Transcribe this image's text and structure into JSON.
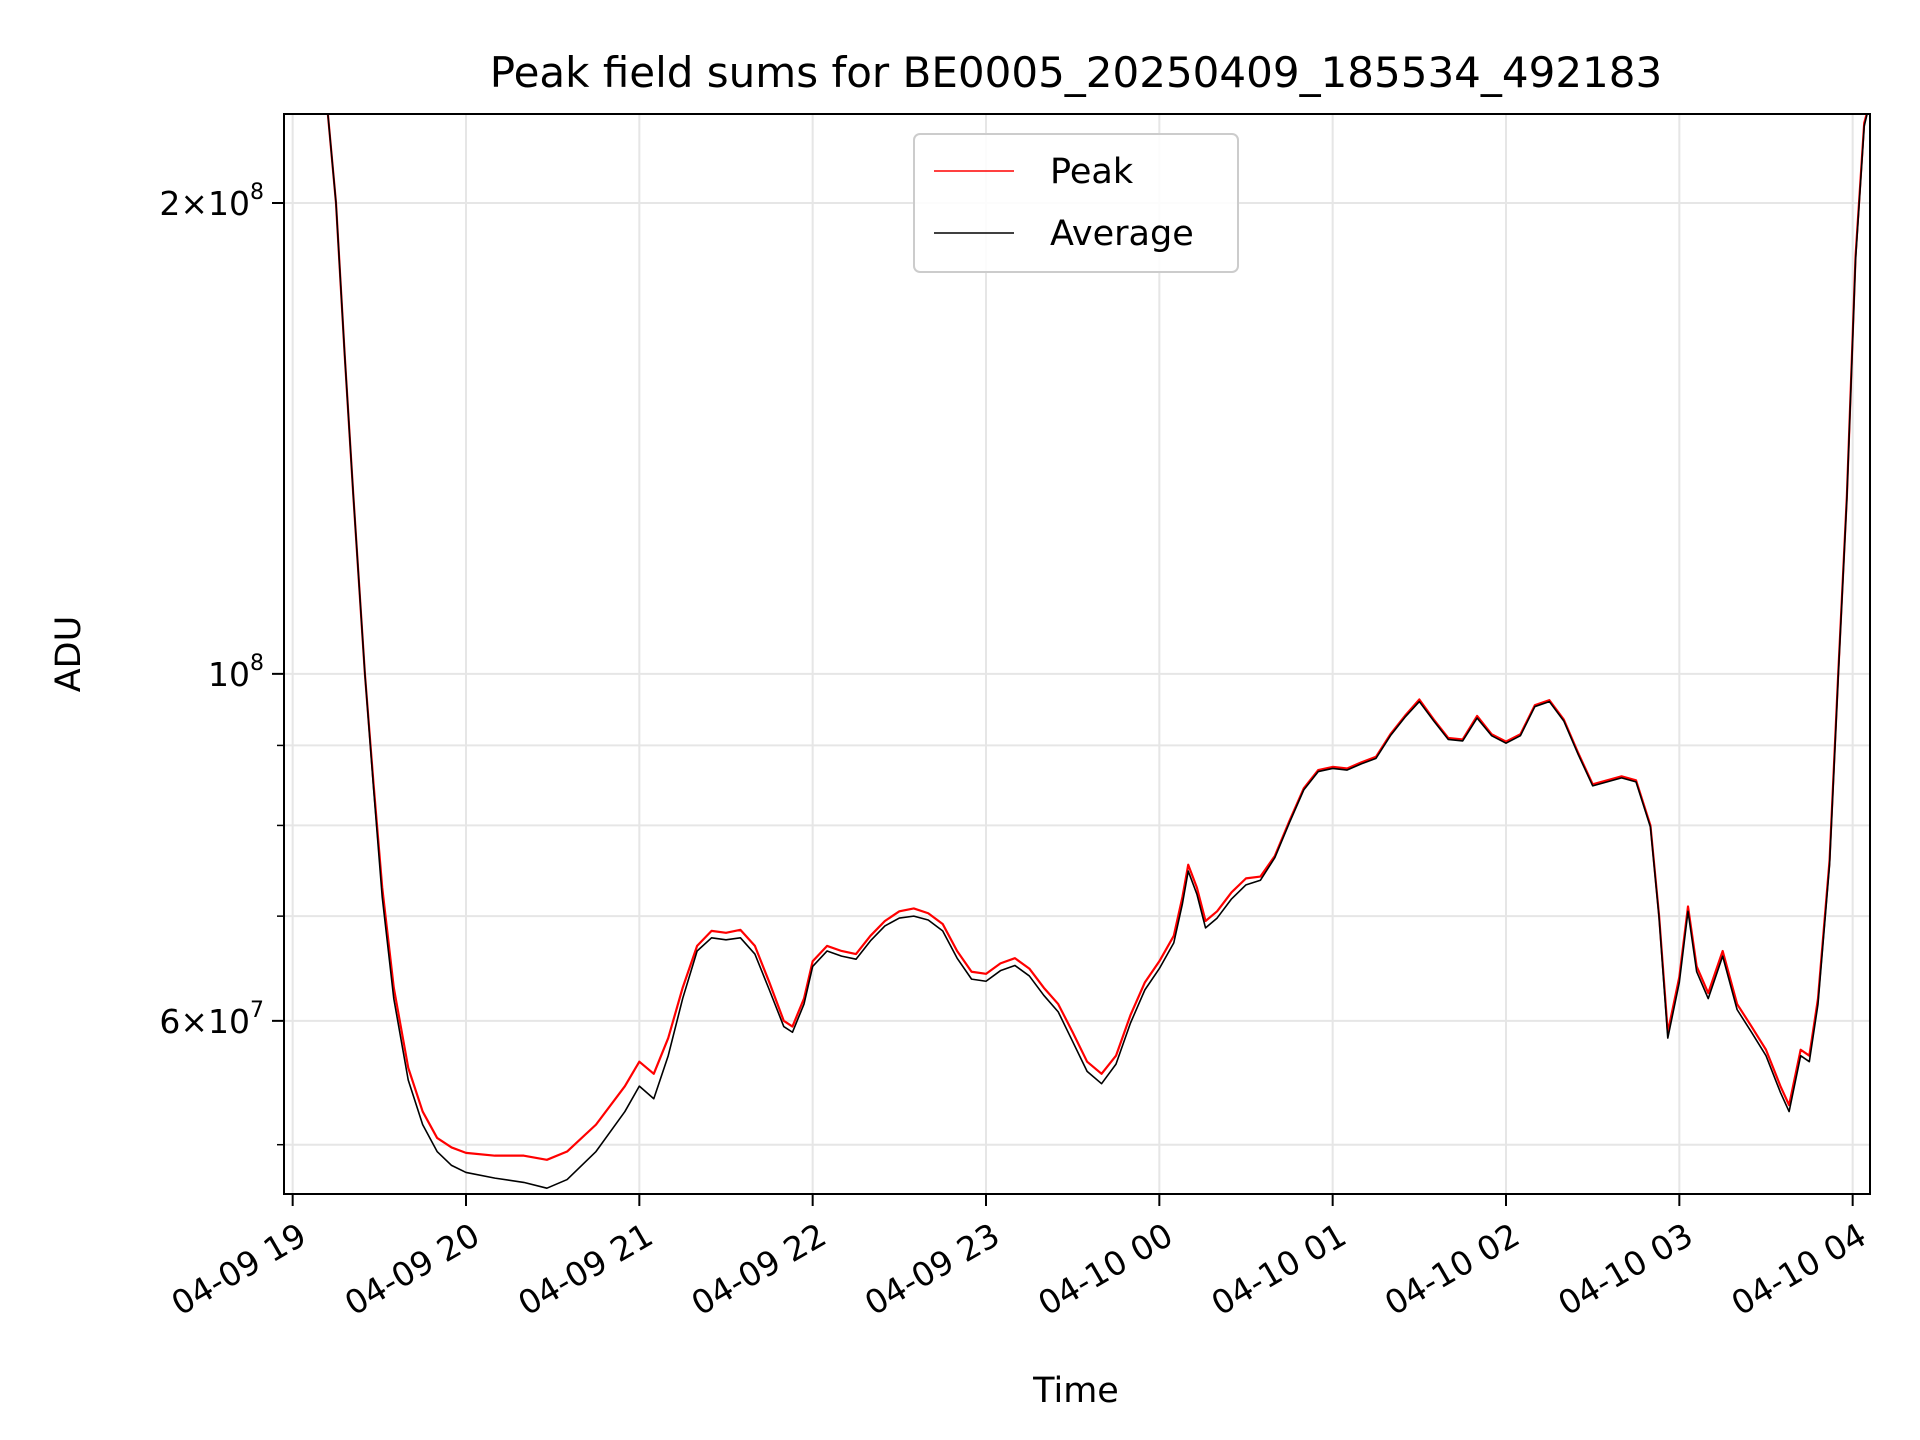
{
  "chart_data": {
    "type": "line",
    "title": "Peak field sums for BE0005_20250409_185534_492183",
    "xlabel": "Time",
    "ylabel": "ADU",
    "yscale": "log",
    "xlim": [
      "2025-04-09 18:57",
      "2025-04-10 04:06"
    ],
    "ylim": [
      46500000,
      228000000
    ],
    "x_ticks": [
      {
        "t": "2025-04-09 19:00",
        "label": "04-09 19"
      },
      {
        "t": "2025-04-09 20:00",
        "label": "04-09 20"
      },
      {
        "t": "2025-04-09 21:00",
        "label": "04-09 21"
      },
      {
        "t": "2025-04-09 22:00",
        "label": "04-09 22"
      },
      {
        "t": "2025-04-09 23:00",
        "label": "04-09 23"
      },
      {
        "t": "2025-04-10 00:00",
        "label": "04-10 00"
      },
      {
        "t": "2025-04-10 01:00",
        "label": "04-10 01"
      },
      {
        "t": "2025-04-10 02:00",
        "label": "04-10 02"
      },
      {
        "t": "2025-04-10 03:00",
        "label": "04-10 03"
      },
      {
        "t": "2025-04-10 04:00",
        "label": "04-10 04"
      }
    ],
    "y_major_ticks": [
      {
        "value": 60000000,
        "mantissa": "6",
        "exponent": "7"
      },
      {
        "value": 100000000,
        "mantissa": "",
        "exponent": "8"
      },
      {
        "value": 200000000,
        "mantissa": "2",
        "exponent": "8"
      }
    ],
    "y_minor_ticks": [
      50000000,
      70000000,
      80000000,
      90000000
    ],
    "grid": true,
    "legend_position": "top-center",
    "series": [
      {
        "name": "Peak",
        "color": "#ff0000",
        "points": [
          [
            "2025-04-09 19:12",
            230000000
          ],
          [
            "2025-04-09 19:15",
            200000000
          ],
          [
            "2025-04-09 19:18",
            160000000
          ],
          [
            "2025-04-09 19:21",
            130000000
          ],
          [
            "2025-04-09 19:25",
            100000000
          ],
          [
            "2025-04-09 19:28",
            85000000
          ],
          [
            "2025-04-09 19:31",
            73000000
          ],
          [
            "2025-04-09 19:35",
            63000000
          ],
          [
            "2025-04-09 19:40",
            56000000
          ],
          [
            "2025-04-09 19:45",
            52500000
          ],
          [
            "2025-04-09 19:50",
            50500000
          ],
          [
            "2025-04-09 19:55",
            49800000
          ],
          [
            "2025-04-09 20:00",
            49400000
          ],
          [
            "2025-04-09 20:10",
            49200000
          ],
          [
            "2025-04-09 20:20",
            49200000
          ],
          [
            "2025-04-09 20:28",
            48900000
          ],
          [
            "2025-04-09 20:35",
            49500000
          ],
          [
            "2025-04-09 20:45",
            51500000
          ],
          [
            "2025-04-09 20:55",
            54500000
          ],
          [
            "2025-04-09 21:00",
            56500000
          ],
          [
            "2025-04-09 21:05",
            55500000
          ],
          [
            "2025-04-09 21:10",
            58500000
          ],
          [
            "2025-04-09 21:15",
            63000000
          ],
          [
            "2025-04-09 21:20",
            67000000
          ],
          [
            "2025-04-09 21:25",
            68500000
          ],
          [
            "2025-04-09 21:30",
            68300000
          ],
          [
            "2025-04-09 21:35",
            68600000
          ],
          [
            "2025-04-09 21:40",
            67000000
          ],
          [
            "2025-04-09 21:45",
            63500000
          ],
          [
            "2025-04-09 21:50",
            60000000
          ],
          [
            "2025-04-09 21:53",
            59500000
          ],
          [
            "2025-04-09 21:57",
            62000000
          ],
          [
            "2025-04-09 22:00",
            65500000
          ],
          [
            "2025-04-09 22:05",
            67000000
          ],
          [
            "2025-04-09 22:10",
            66500000
          ],
          [
            "2025-04-09 22:15",
            66200000
          ],
          [
            "2025-04-09 22:20",
            68000000
          ],
          [
            "2025-04-09 22:25",
            69500000
          ],
          [
            "2025-04-09 22:30",
            70500000
          ],
          [
            "2025-04-09 22:35",
            70800000
          ],
          [
            "2025-04-09 22:40",
            70300000
          ],
          [
            "2025-04-09 22:45",
            69200000
          ],
          [
            "2025-04-09 22:50",
            66500000
          ],
          [
            "2025-04-09 22:55",
            64500000
          ],
          [
            "2025-04-09 23:00",
            64300000
          ],
          [
            "2025-04-09 23:05",
            65300000
          ],
          [
            "2025-04-09 23:10",
            65800000
          ],
          [
            "2025-04-09 23:15",
            64800000
          ],
          [
            "2025-04-09 23:20",
            63000000
          ],
          [
            "2025-04-09 23:25",
            61500000
          ],
          [
            "2025-04-09 23:30",
            59000000
          ],
          [
            "2025-04-09 23:35",
            56500000
          ],
          [
            "2025-04-09 23:40",
            55500000
          ],
          [
            "2025-04-09 23:45",
            57000000
          ],
          [
            "2025-04-09 23:50",
            60500000
          ],
          [
            "2025-04-09 23:55",
            63500000
          ],
          [
            "2025-04-10 00:00",
            65500000
          ],
          [
            "2025-04-10 00:05",
            68000000
          ],
          [
            "2025-04-10 00:08",
            72000000
          ],
          [
            "2025-04-10 00:10",
            75500000
          ],
          [
            "2025-04-10 00:13",
            73000000
          ],
          [
            "2025-04-10 00:16",
            69500000
          ],
          [
            "2025-04-10 00:20",
            70500000
          ],
          [
            "2025-04-10 00:25",
            72500000
          ],
          [
            "2025-04-10 00:30",
            74000000
          ],
          [
            "2025-04-10 00:35",
            74200000
          ],
          [
            "2025-04-10 00:40",
            76500000
          ],
          [
            "2025-04-10 00:45",
            80500000
          ],
          [
            "2025-04-10 00:50",
            84500000
          ],
          [
            "2025-04-10 00:55",
            86800000
          ],
          [
            "2025-04-10 01:00",
            87200000
          ],
          [
            "2025-04-10 01:05",
            87000000
          ],
          [
            "2025-04-10 01:10",
            87800000
          ],
          [
            "2025-04-10 01:15",
            88500000
          ],
          [
            "2025-04-10 01:20",
            91500000
          ],
          [
            "2025-04-10 01:25",
            94000000
          ],
          [
            "2025-04-10 01:30",
            96300000
          ],
          [
            "2025-04-10 01:35",
            93500000
          ],
          [
            "2025-04-10 01:40",
            91000000
          ],
          [
            "2025-04-10 01:45",
            90800000
          ],
          [
            "2025-04-10 01:50",
            94000000
          ],
          [
            "2025-04-10 01:55",
            91500000
          ],
          [
            "2025-04-10 02:00",
            90500000
          ],
          [
            "2025-04-10 02:05",
            91500000
          ],
          [
            "2025-04-10 02:10",
            95500000
          ],
          [
            "2025-04-10 02:15",
            96200000
          ],
          [
            "2025-04-10 02:20",
            93500000
          ],
          [
            "2025-04-10 02:25",
            89000000
          ],
          [
            "2025-04-10 02:30",
            85000000
          ],
          [
            "2025-04-10 02:35",
            85500000
          ],
          [
            "2025-04-10 02:40",
            86000000
          ],
          [
            "2025-04-10 02:45",
            85500000
          ],
          [
            "2025-04-10 02:50",
            80000000
          ],
          [
            "2025-04-10 02:53",
            70000000
          ],
          [
            "2025-04-10 02:56",
            59000000
          ],
          [
            "2025-04-10 03:00",
            64000000
          ],
          [
            "2025-04-10 03:03",
            71000000
          ],
          [
            "2025-04-10 03:06",
            65000000
          ],
          [
            "2025-04-10 03:10",
            62500000
          ],
          [
            "2025-04-10 03:15",
            66500000
          ],
          [
            "2025-04-10 03:20",
            61500000
          ],
          [
            "2025-04-10 03:25",
            59500000
          ],
          [
            "2025-04-10 03:30",
            57500000
          ],
          [
            "2025-04-10 03:35",
            54500000
          ],
          [
            "2025-04-10 03:38",
            53000000
          ],
          [
            "2025-04-10 03:42",
            57500000
          ],
          [
            "2025-04-10 03:45",
            57000000
          ],
          [
            "2025-04-10 03:48",
            62000000
          ],
          [
            "2025-04-10 03:52",
            76000000
          ],
          [
            "2025-04-10 03:55",
            100000000
          ],
          [
            "2025-04-10 03:58",
            130000000
          ],
          [
            "2025-04-10 04:01",
            185000000
          ],
          [
            "2025-04-10 04:04",
            225000000
          ],
          [
            "2025-04-10 04:06",
            232000000
          ]
        ]
      },
      {
        "name": "Average",
        "color": "#000000",
        "points": [
          [
            "2025-04-09 19:12",
            230000000
          ],
          [
            "2025-04-09 19:15",
            200000000
          ],
          [
            "2025-04-09 19:18",
            160000000
          ],
          [
            "2025-04-09 19:21",
            130000000
          ],
          [
            "2025-04-09 19:25",
            100000000
          ],
          [
            "2025-04-09 19:28",
            84500000
          ],
          [
            "2025-04-09 19:31",
            72000000
          ],
          [
            "2025-04-09 19:35",
            62000000
          ],
          [
            "2025-04-09 19:40",
            55000000
          ],
          [
            "2025-04-09 19:45",
            51500000
          ],
          [
            "2025-04-09 19:50",
            49500000
          ],
          [
            "2025-04-09 19:55",
            48500000
          ],
          [
            "2025-04-09 20:00",
            48000000
          ],
          [
            "2025-04-09 20:10",
            47600000
          ],
          [
            "2025-04-09 20:20",
            47300000
          ],
          [
            "2025-04-09 20:28",
            46900000
          ],
          [
            "2025-04-09 20:35",
            47500000
          ],
          [
            "2025-04-09 20:45",
            49500000
          ],
          [
            "2025-04-09 20:55",
            52500000
          ],
          [
            "2025-04-09 21:00",
            54500000
          ],
          [
            "2025-04-09 21:05",
            53500000
          ],
          [
            "2025-04-09 21:10",
            57000000
          ],
          [
            "2025-04-09 21:15",
            62000000
          ],
          [
            "2025-04-09 21:20",
            66500000
          ],
          [
            "2025-04-09 21:25",
            67800000
          ],
          [
            "2025-04-09 21:30",
            67600000
          ],
          [
            "2025-04-09 21:35",
            67800000
          ],
          [
            "2025-04-09 21:40",
            66200000
          ],
          [
            "2025-04-09 21:45",
            62800000
          ],
          [
            "2025-04-09 21:50",
            59500000
          ],
          [
            "2025-04-09 21:53",
            59000000
          ],
          [
            "2025-04-09 21:57",
            61500000
          ],
          [
            "2025-04-09 22:00",
            65000000
          ],
          [
            "2025-04-09 22:05",
            66500000
          ],
          [
            "2025-04-09 22:10",
            66000000
          ],
          [
            "2025-04-09 22:15",
            65700000
          ],
          [
            "2025-04-09 22:20",
            67500000
          ],
          [
            "2025-04-09 22:25",
            69000000
          ],
          [
            "2025-04-09 22:30",
            69800000
          ],
          [
            "2025-04-09 22:35",
            70000000
          ],
          [
            "2025-04-09 22:40",
            69600000
          ],
          [
            "2025-04-09 22:45",
            68500000
          ],
          [
            "2025-04-09 22:50",
            65800000
          ],
          [
            "2025-04-09 22:55",
            63800000
          ],
          [
            "2025-04-09 23:00",
            63600000
          ],
          [
            "2025-04-09 23:05",
            64600000
          ],
          [
            "2025-04-09 23:10",
            65100000
          ],
          [
            "2025-04-09 23:15",
            64100000
          ],
          [
            "2025-04-09 23:20",
            62300000
          ],
          [
            "2025-04-09 23:25",
            60800000
          ],
          [
            "2025-04-09 23:30",
            58200000
          ],
          [
            "2025-04-09 23:35",
            55700000
          ],
          [
            "2025-04-09 23:40",
            54700000
          ],
          [
            "2025-04-09 23:45",
            56300000
          ],
          [
            "2025-04-09 23:50",
            59800000
          ],
          [
            "2025-04-09 23:55",
            62800000
          ],
          [
            "2025-04-10 00:00",
            64800000
          ],
          [
            "2025-04-10 00:05",
            67300000
          ],
          [
            "2025-04-10 00:08",
            71300000
          ],
          [
            "2025-04-10 00:10",
            74800000
          ],
          [
            "2025-04-10 00:13",
            72300000
          ],
          [
            "2025-04-10 00:16",
            68800000
          ],
          [
            "2025-04-10 00:20",
            69800000
          ],
          [
            "2025-04-10 00:25",
            71800000
          ],
          [
            "2025-04-10 00:30",
            73300000
          ],
          [
            "2025-04-10 00:35",
            73800000
          ],
          [
            "2025-04-10 00:40",
            76300000
          ],
          [
            "2025-04-10 00:45",
            80300000
          ],
          [
            "2025-04-10 00:50",
            84300000
          ],
          [
            "2025-04-10 00:55",
            86600000
          ],
          [
            "2025-04-10 01:00",
            87000000
          ],
          [
            "2025-04-10 01:05",
            86800000
          ],
          [
            "2025-04-10 01:10",
            87600000
          ],
          [
            "2025-04-10 01:15",
            88300000
          ],
          [
            "2025-04-10 01:20",
            91300000
          ],
          [
            "2025-04-10 01:25",
            93800000
          ],
          [
            "2025-04-10 01:30",
            96000000
          ],
          [
            "2025-04-10 01:35",
            93300000
          ],
          [
            "2025-04-10 01:40",
            90800000
          ],
          [
            "2025-04-10 01:45",
            90600000
          ],
          [
            "2025-04-10 01:50",
            93700000
          ],
          [
            "2025-04-10 01:55",
            91300000
          ],
          [
            "2025-04-10 02:00",
            90300000
          ],
          [
            "2025-04-10 02:05",
            91300000
          ],
          [
            "2025-04-10 02:10",
            95300000
          ],
          [
            "2025-04-10 02:15",
            96000000
          ],
          [
            "2025-04-10 02:20",
            93300000
          ],
          [
            "2025-04-10 02:25",
            88800000
          ],
          [
            "2025-04-10 02:30",
            84800000
          ],
          [
            "2025-04-10 02:35",
            85300000
          ],
          [
            "2025-04-10 02:40",
            85800000
          ],
          [
            "2025-04-10 02:45",
            85300000
          ],
          [
            "2025-04-10 02:50",
            79800000
          ],
          [
            "2025-04-10 02:53",
            69800000
          ],
          [
            "2025-04-10 02:56",
            58500000
          ],
          [
            "2025-04-10 03:00",
            63500000
          ],
          [
            "2025-04-10 03:03",
            70500000
          ],
          [
            "2025-04-10 03:06",
            64500000
          ],
          [
            "2025-04-10 03:10",
            62000000
          ],
          [
            "2025-04-10 03:15",
            66000000
          ],
          [
            "2025-04-10 03:20",
            61000000
          ],
          [
            "2025-04-10 03:25",
            59000000
          ],
          [
            "2025-04-10 03:30",
            57000000
          ],
          [
            "2025-04-10 03:35",
            54000000
          ],
          [
            "2025-04-10 03:38",
            52500000
          ],
          [
            "2025-04-10 03:42",
            57000000
          ],
          [
            "2025-04-10 03:45",
            56500000
          ],
          [
            "2025-04-10 03:48",
            61500000
          ],
          [
            "2025-04-10 03:52",
            75500000
          ],
          [
            "2025-04-10 03:55",
            99500000
          ],
          [
            "2025-04-10 03:58",
            129500000
          ],
          [
            "2025-04-10 04:01",
            184000000
          ],
          [
            "2025-04-10 04:04",
            224000000
          ],
          [
            "2025-04-10 04:06",
            232000000
          ]
        ]
      }
    ]
  }
}
